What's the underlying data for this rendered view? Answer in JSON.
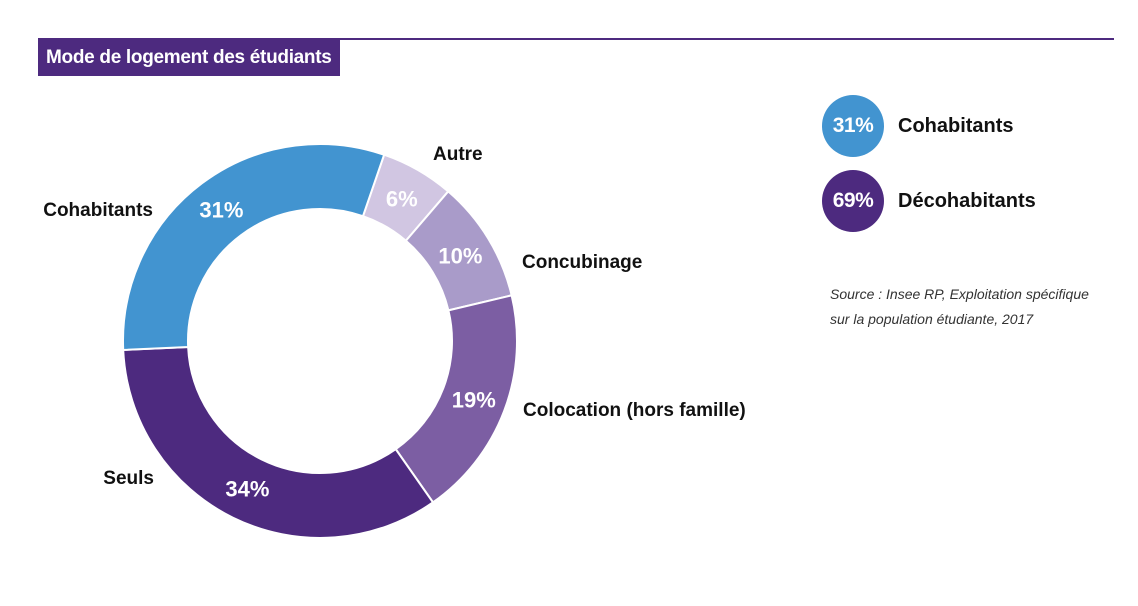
{
  "header": {
    "title": "Mode de logement des étudiants"
  },
  "chart_data": {
    "type": "pie",
    "donut": true,
    "title": "Mode de logement des étudiants",
    "categories": [
      "Autre",
      "Concubinage",
      "Colocation (hors famille)",
      "Seuls",
      "Cohabitants"
    ],
    "values": [
      6,
      10,
      19,
      34,
      31
    ],
    "value_labels": [
      "6%",
      "10%",
      "19%",
      "34%",
      "31%"
    ],
    "colors": [
      "#d1c6e2",
      "#a99bc9",
      "#7c5ea3",
      "#4d2a7f",
      "#4294d0"
    ],
    "unit": "%"
  },
  "legend": [
    {
      "value": "31%",
      "label": "Cohabitants",
      "color": "#4294d0"
    },
    {
      "value": "69%",
      "label": "Décohabitants",
      "color": "#4d2a7f"
    }
  ],
  "source": {
    "line1": "Source : Insee RP, Exploitation spécifique",
    "line2": "sur la population étudiante, 2017"
  },
  "colors": {
    "accent": "#4d2a7f",
    "text": "#111111"
  }
}
